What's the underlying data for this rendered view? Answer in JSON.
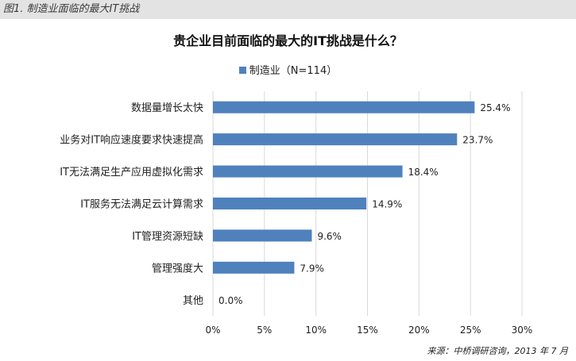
{
  "figure_caption": "图1. 制造业面临的最大IT挑战",
  "source": "来源：中桥调研咨询，2013 年 7 月",
  "colors": {
    "bar": "#4f81bd",
    "grid": "#d9d9d9",
    "header_bg": "#e3e3e3"
  },
  "chart_data": {
    "type": "bar",
    "orientation": "horizontal",
    "title": "贵企业目前面临的最大的IT挑战是什么？",
    "categories": [
      "数据量增长太快",
      "业务对IT响应速度要求快速提高",
      "IT无法满足生产应用虚拟化需求",
      "IT服务无法满足云计算需求",
      "IT管理资源短缺",
      "管理强度大",
      "其他"
    ],
    "series": [
      {
        "name": "制造业（N=114）",
        "values": [
          25.4,
          23.7,
          18.4,
          14.9,
          9.6,
          7.9,
          0.0
        ]
      }
    ],
    "value_labels": [
      "25.4%",
      "23.7%",
      "18.4%",
      "14.9%",
      "9.6%",
      "7.9%",
      "0.0%"
    ],
    "x_ticks": [
      "0%",
      "5%",
      "10%",
      "15%",
      "20%",
      "25%",
      "30%"
    ],
    "xlim": [
      0,
      30
    ],
    "grid": true,
    "legend_position": "top"
  }
}
